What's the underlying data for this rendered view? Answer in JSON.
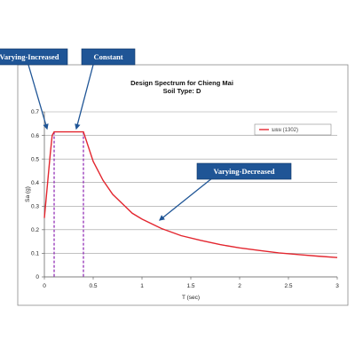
{
  "chart_data": {
    "type": "line",
    "title": "Design Spectrum for Chieng Mai",
    "subtitle": "Soil Type: D",
    "xlabel": "T (sec)",
    "ylabel": "Sa (g)",
    "xlim": [
      0,
      3
    ],
    "ylim": [
      0,
      0.7
    ],
    "x_ticks": [
      "0",
      "0.5",
      "1",
      "1.5",
      "2",
      "2.5",
      "3"
    ],
    "y_ticks": [
      "0",
      "0.1",
      "0.2",
      "0.3",
      "0.4",
      "0.5",
      "0.6",
      "0.7"
    ],
    "grid": "horizontal",
    "legend_position": "top-right",
    "series": [
      {
        "name": "มยผ (1302)",
        "color": "#e3262f",
        "x": [
          0,
          0.02,
          0.04,
          0.06,
          0.08,
          0.1,
          0.4,
          0.5,
          0.6,
          0.7,
          0.8,
          0.9,
          1.0,
          1.2,
          1.4,
          1.6,
          1.8,
          2.0,
          2.2,
          2.4,
          2.6,
          2.8,
          3.0
        ],
        "y": [
          0.25,
          0.34,
          0.43,
          0.52,
          0.6,
          0.615,
          0.615,
          0.49,
          0.41,
          0.35,
          0.31,
          0.27,
          0.245,
          0.205,
          0.175,
          0.155,
          0.137,
          0.123,
          0.112,
          0.102,
          0.095,
          0.088,
          0.082
        ]
      }
    ],
    "corner_periods": [
      0.1,
      0.4
    ],
    "corner_line_color": "#8a1fb0",
    "annotations": [
      "Varying-Increased",
      "Constant",
      "Varying-Decreased"
    ]
  },
  "colors": {
    "callout_fill": "#1f5596",
    "arrow": "#1f5596"
  }
}
